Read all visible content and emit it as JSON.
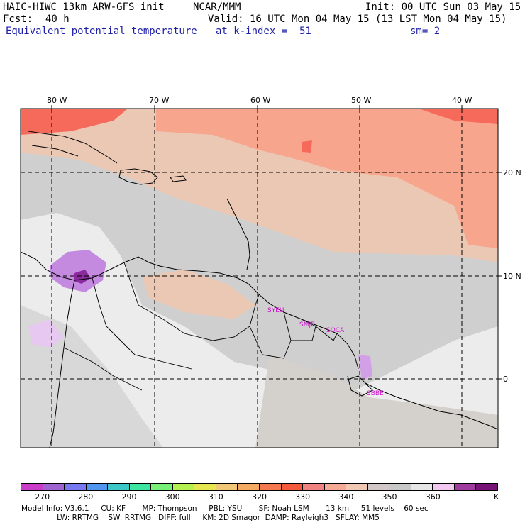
{
  "header": {
    "model_title": "HAIC-HIWC 13km ARW-GFS init",
    "org": "NCAR/MMM",
    "init": "Init: 00 UTC Sun 03 May 15",
    "fcst_label": "Fcst:",
    "fcst_value": "40 h",
    "valid": "Valid: 16 UTC Mon 04 May 15 (13 LST Mon 04 May 15)",
    "field_name": "Equivalent potential temperature",
    "level": "at k-index =  51",
    "smoothing": "sm= 2"
  },
  "map": {
    "lon_labels": [
      "80 W",
      "70 W",
      "60 W",
      "50 W",
      "40 W"
    ],
    "lat_labels": [
      "20 N",
      "10 N",
      "0"
    ],
    "stations": [
      "SYEU",
      "SMJP",
      "SOCA",
      "SBBE"
    ],
    "colors": {
      "background_field": "#cfcfcf",
      "warm_field": "#f7a58c",
      "hot_field": "#f56a5a",
      "light_field": "#ececec",
      "tan_field": "#ebc8b4",
      "purple_field": "#c48ae0",
      "deep_purple": "#8a2a9c",
      "gridline": "#000000",
      "coast": "#000000"
    }
  },
  "colorbar": {
    "colors": [
      "#c83cc8",
      "#a064d2",
      "#7878f0",
      "#5096f0",
      "#3cc8c8",
      "#3ce6a0",
      "#78f078",
      "#b4f050",
      "#e6e650",
      "#f0c878",
      "#f5aa64",
      "#f57850",
      "#f55a3c",
      "#f08282",
      "#f5aa96",
      "#f0c8b4",
      "#d2c8c8",
      "#c8c8c8",
      "#e6e6e6",
      "#f0c8f0",
      "#a03ca0",
      "#781478"
    ],
    "labels": [
      "270",
      "280",
      "290",
      "300",
      "310",
      "320",
      "330",
      "340",
      "350",
      "360"
    ],
    "unit": "K"
  },
  "footer": {
    "line1": "Model Info: V3.6.1     CU: KF       MP: Thompson     PBL: YSU       SF: Noah LSM       13 km     51 levels    60 sec",
    "line2": "               LW: RRTMG    SW: RRTMG   DIFF: full     KM: 2D Smagor  DAMP: Rayleigh3   SFLAY: MM5"
  }
}
